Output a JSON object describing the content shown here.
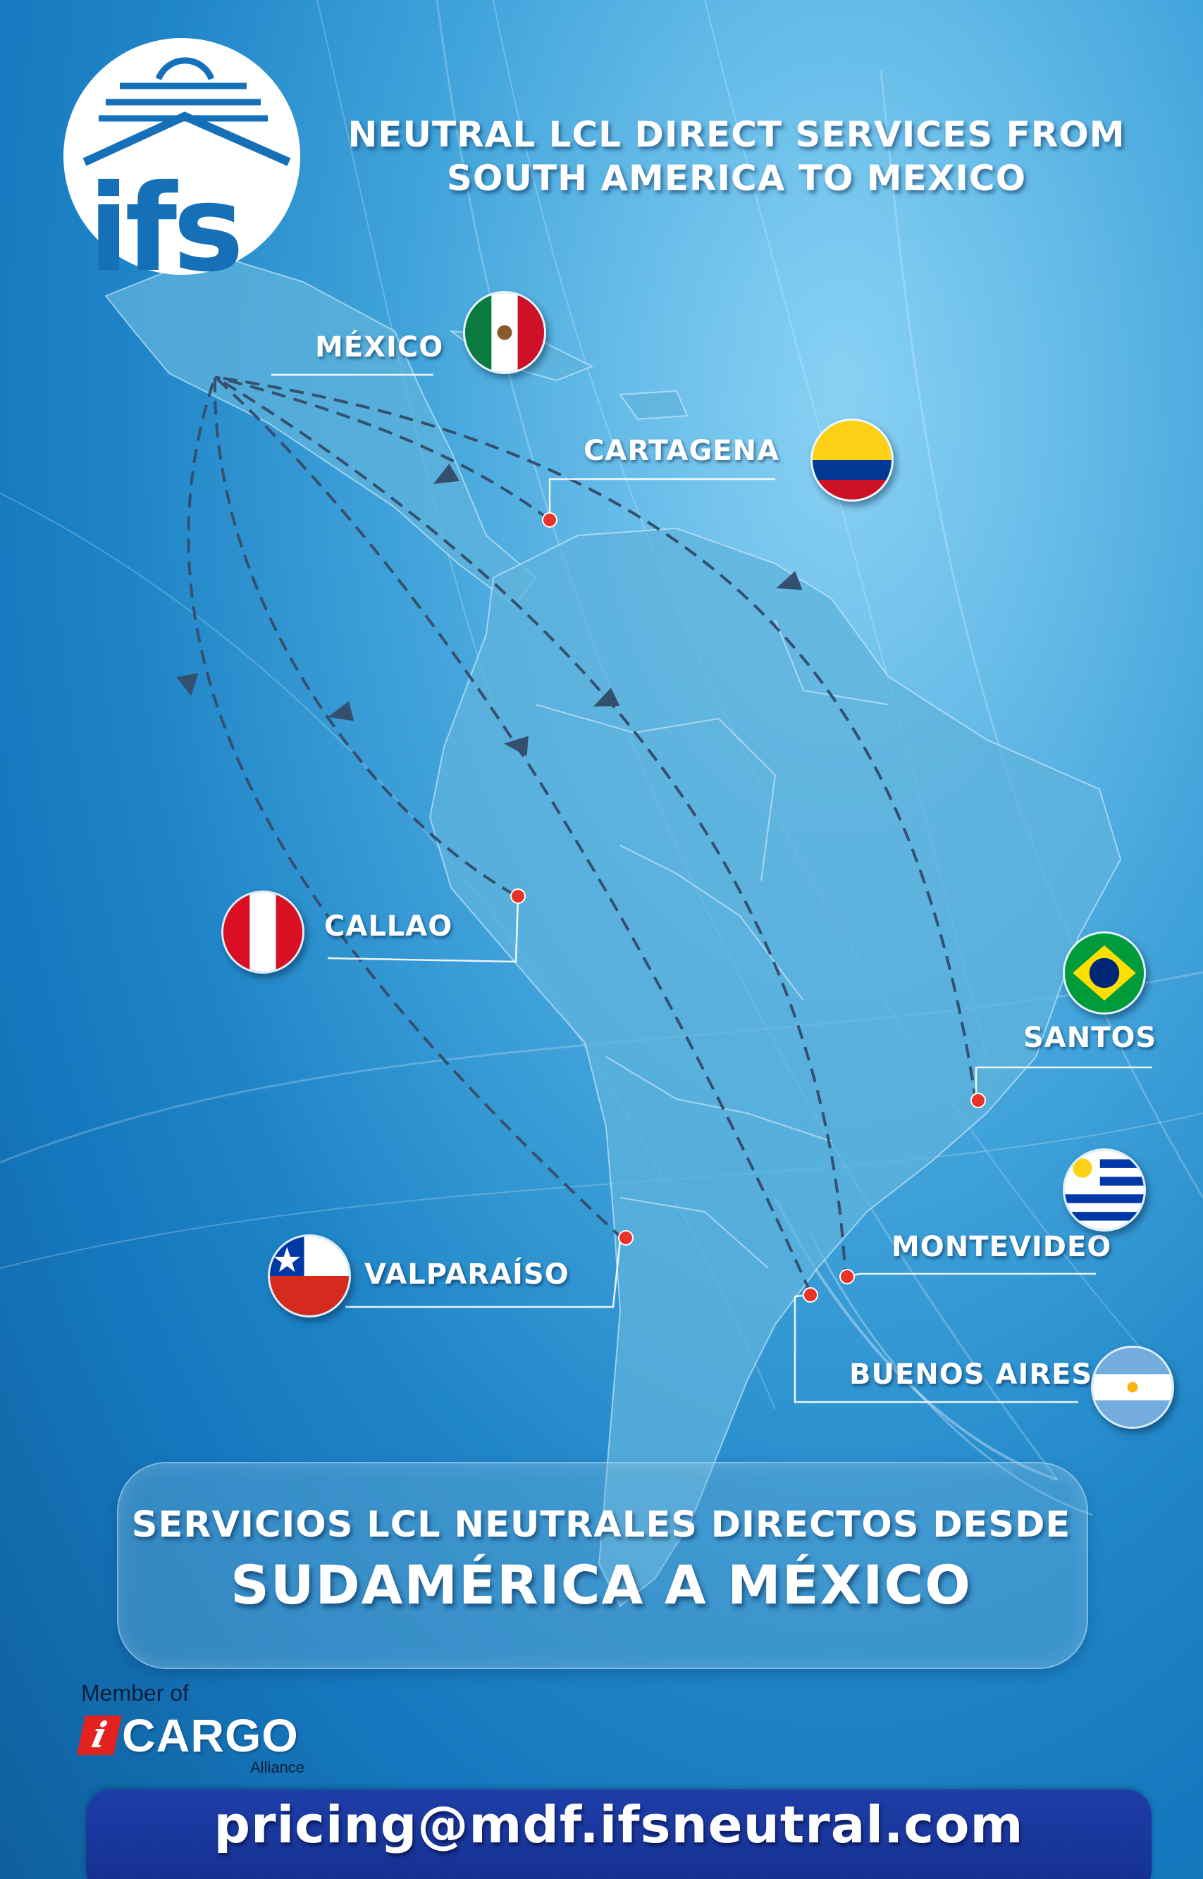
{
  "logo": {
    "text": "ifs",
    "color": "#1670b8"
  },
  "title_en": {
    "line1": "NEUTRAL LCL DIRECT SERVICES FROM",
    "line2": "SOUTH AMERICA TO MEXICO"
  },
  "ports": {
    "mexico": {
      "label": "MÉXICO",
      "flag": "mexico-flag-icon"
    },
    "cartagena": {
      "label": "CARTAGENA",
      "flag": "colombia-flag-icon"
    },
    "callao": {
      "label": "CALLAO",
      "flag": "peru-flag-icon"
    },
    "santos": {
      "label": "SANTOS",
      "flag": "brazil-flag-icon"
    },
    "montevideo": {
      "label": "MONTEVIDEO",
      "flag": "uruguay-flag-icon"
    },
    "valparaiso": {
      "label": "VALPARAÍSO",
      "flag": "chile-flag-icon"
    },
    "buenos_aires": {
      "label": "BUENOS AIRES",
      "flag": "argentina-flag-icon"
    }
  },
  "title_es": {
    "line1": "SERVICIOS LCL NEUTRALES DIRECTOS DESDE",
    "line2": "SUDAMÉRICA A MÉXICO"
  },
  "membership": {
    "member_of": "Member of",
    "logo_word": "CARGO",
    "logo_mark": "i",
    "alliance": "Alliance"
  },
  "contact": {
    "email": "pricing@mdf.ifsneutral.com"
  },
  "colors": {
    "background": "#2e9bd8",
    "land": "#5fb3dc",
    "route_line": "#34506e",
    "pin": "#e8322a",
    "email_bar": "#1a379c"
  }
}
